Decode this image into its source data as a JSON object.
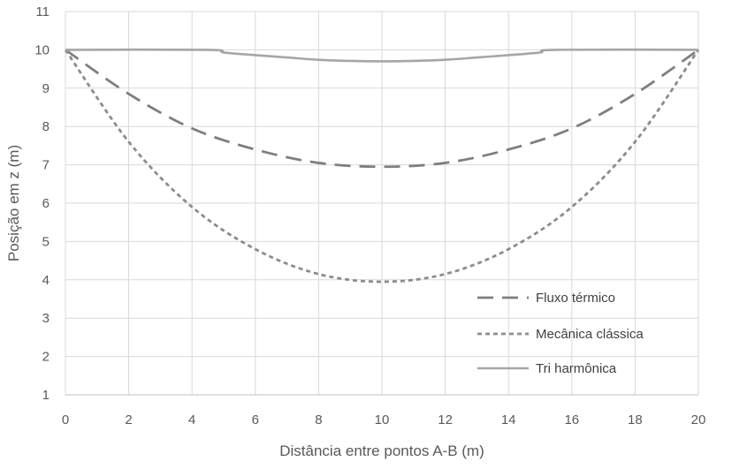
{
  "chart_data": {
    "type": "line",
    "title": "",
    "xlabel": "Distância entre pontos A-B (m)",
    "ylabel": "Posição em z (m)",
    "xlim": [
      0,
      20
    ],
    "ylim": [
      1,
      11
    ],
    "xticks": [
      0,
      2,
      4,
      6,
      8,
      10,
      12,
      14,
      16,
      18,
      20
    ],
    "yticks": [
      1,
      2,
      3,
      4,
      5,
      6,
      7,
      8,
      9,
      10,
      11
    ],
    "grid": true,
    "legend_position": "bottom-right",
    "series": [
      {
        "name": "Fluxo térmico",
        "style": "long-dash",
        "color": "#7f7f7f",
        "x": [
          0,
          2,
          4,
          6,
          8,
          10,
          12,
          14,
          16,
          18,
          20
        ],
        "y": [
          10,
          8.85,
          7.95,
          7.4,
          7.05,
          6.95,
          7.05,
          7.4,
          7.95,
          8.85,
          10
        ]
      },
      {
        "name": "Mecânica clássica",
        "style": "short-dash",
        "color": "#8c8c8c",
        "x": [
          0,
          2,
          4,
          6,
          8,
          10,
          12,
          14,
          16,
          18,
          20
        ],
        "y": [
          10,
          7.6,
          5.9,
          4.8,
          4.15,
          3.95,
          4.15,
          4.8,
          5.9,
          7.6,
          10
        ]
      },
      {
        "name": "Tri harmônica",
        "style": "solid",
        "color": "#a6a6a6",
        "x": [
          0,
          4.5,
          5,
          6,
          7,
          8,
          9,
          10,
          11,
          12,
          13,
          14,
          15,
          15.5,
          20
        ],
        "y": [
          10,
          10,
          9.93,
          9.86,
          9.8,
          9.74,
          9.71,
          9.7,
          9.71,
          9.74,
          9.8,
          9.86,
          9.93,
          10,
          10
        ]
      }
    ]
  }
}
